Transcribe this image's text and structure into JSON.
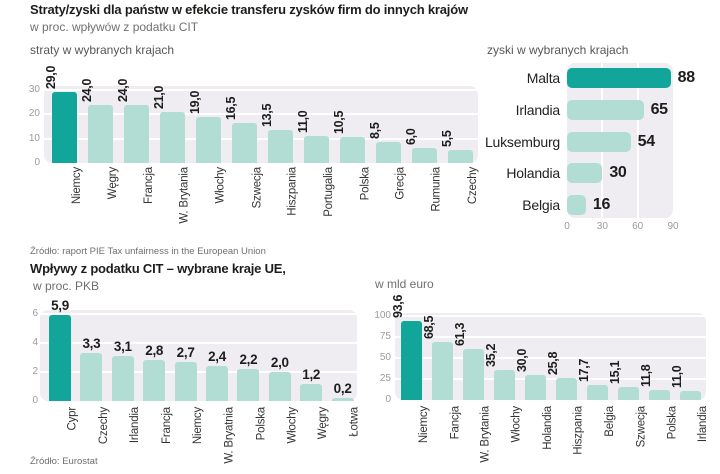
{
  "header": {
    "title": "Straty/zyski dla państw w efekcie transferu zysków firm do innych krajów",
    "subtitle": "w proc. wpływów z podatku CIT"
  },
  "section2": {
    "title": "Wpływy z podatku CIT – wybrane kraje UE,",
    "subtitle": "w proc. PKB"
  },
  "sources": {
    "first": "Źródło: raport PIE Tax unfairness in the European Union",
    "second": "Źródło: Eurostat"
  },
  "colors": {
    "highlight": "#12a69b",
    "bar": "#b2ddd5",
    "panel": "#efedf2",
    "gridline": "#ffffff",
    "value_text": "#1d1d1b",
    "tick_text": "#9b9a9a"
  },
  "chart_data": [
    {
      "id": "losses",
      "type": "bar",
      "title": "straty w wybranych krajach",
      "categories": [
        "Niemcy",
        "Węgry",
        "Francja",
        "W. Brytania",
        "Włochy",
        "Szwecja",
        "Hiszpania",
        "Portugalia",
        "Polska",
        "Grecja",
        "Rumunia",
        "Czechy"
      ],
      "values": [
        29.0,
        24.0,
        24.0,
        21.0,
        19.0,
        16.5,
        13.5,
        11.0,
        10.5,
        8.5,
        6.0,
        5.5
      ],
      "value_labels": [
        "29,0",
        "24,0",
        "24,0",
        "21,0",
        "19,0",
        "16,5",
        "13,5",
        "11,0",
        "10,5",
        "8,5",
        "6,0",
        "5,5"
      ],
      "yticks": [
        0,
        10,
        20,
        30
      ],
      "ylim": [
        0,
        30
      ],
      "grid": true,
      "highlight_index": 0
    },
    {
      "id": "gains",
      "type": "bar",
      "orientation": "horizontal",
      "title": "zyski w wybranych krajach",
      "categories": [
        "Malta",
        "Irlandia",
        "Luksemburg",
        "Holandia",
        "Belgia"
      ],
      "values": [
        88,
        65,
        54,
        30,
        16
      ],
      "value_labels": [
        "88",
        "65",
        "54",
        "30",
        "16"
      ],
      "xticks": [
        0,
        30,
        60,
        90
      ],
      "xlim": [
        0,
        90
      ],
      "grid": true,
      "highlight_index": 0
    },
    {
      "id": "cit-gdp",
      "type": "bar",
      "title": "w proc. PKB",
      "categories": [
        "Cypr",
        "Czechy",
        "Irlandia",
        "Francja",
        "Niemcy",
        "W. Bryatnia",
        "Polska",
        "Włochy",
        "Węgry",
        "Łotwa"
      ],
      "values": [
        5.9,
        3.3,
        3.1,
        2.8,
        2.7,
        2.4,
        2.2,
        2.0,
        1.2,
        0.2
      ],
      "value_labels": [
        "5,9",
        "3,3",
        "3,1",
        "2,8",
        "2,7",
        "2,4",
        "2,2",
        "2,0",
        "1,2",
        "0,2"
      ],
      "yticks": [
        0,
        2,
        4,
        6
      ],
      "ylim": [
        0,
        6
      ],
      "grid": true,
      "highlight_index": 0
    },
    {
      "id": "cit-eur",
      "type": "bar",
      "title": "w mld euro",
      "categories": [
        "Niemcy",
        "Fancja",
        "W. Brytania",
        "Włochy",
        "Holandia",
        "Hiszpania",
        "Belgia",
        "Szwecja",
        "Polska",
        "Irlandia"
      ],
      "values": [
        93.6,
        68.5,
        61.3,
        35.2,
        30.0,
        25.8,
        17.7,
        15.1,
        11.8,
        11.0
      ],
      "value_labels": [
        "93,6",
        "68,5",
        "61,3",
        "35,2",
        "30,0",
        "25,8",
        "17,7",
        "15,1",
        "11,8",
        "11,0"
      ],
      "yticks": [
        0,
        25,
        50,
        75,
        100
      ],
      "ylim": [
        0,
        100
      ],
      "grid": true,
      "highlight_index": 0
    }
  ]
}
